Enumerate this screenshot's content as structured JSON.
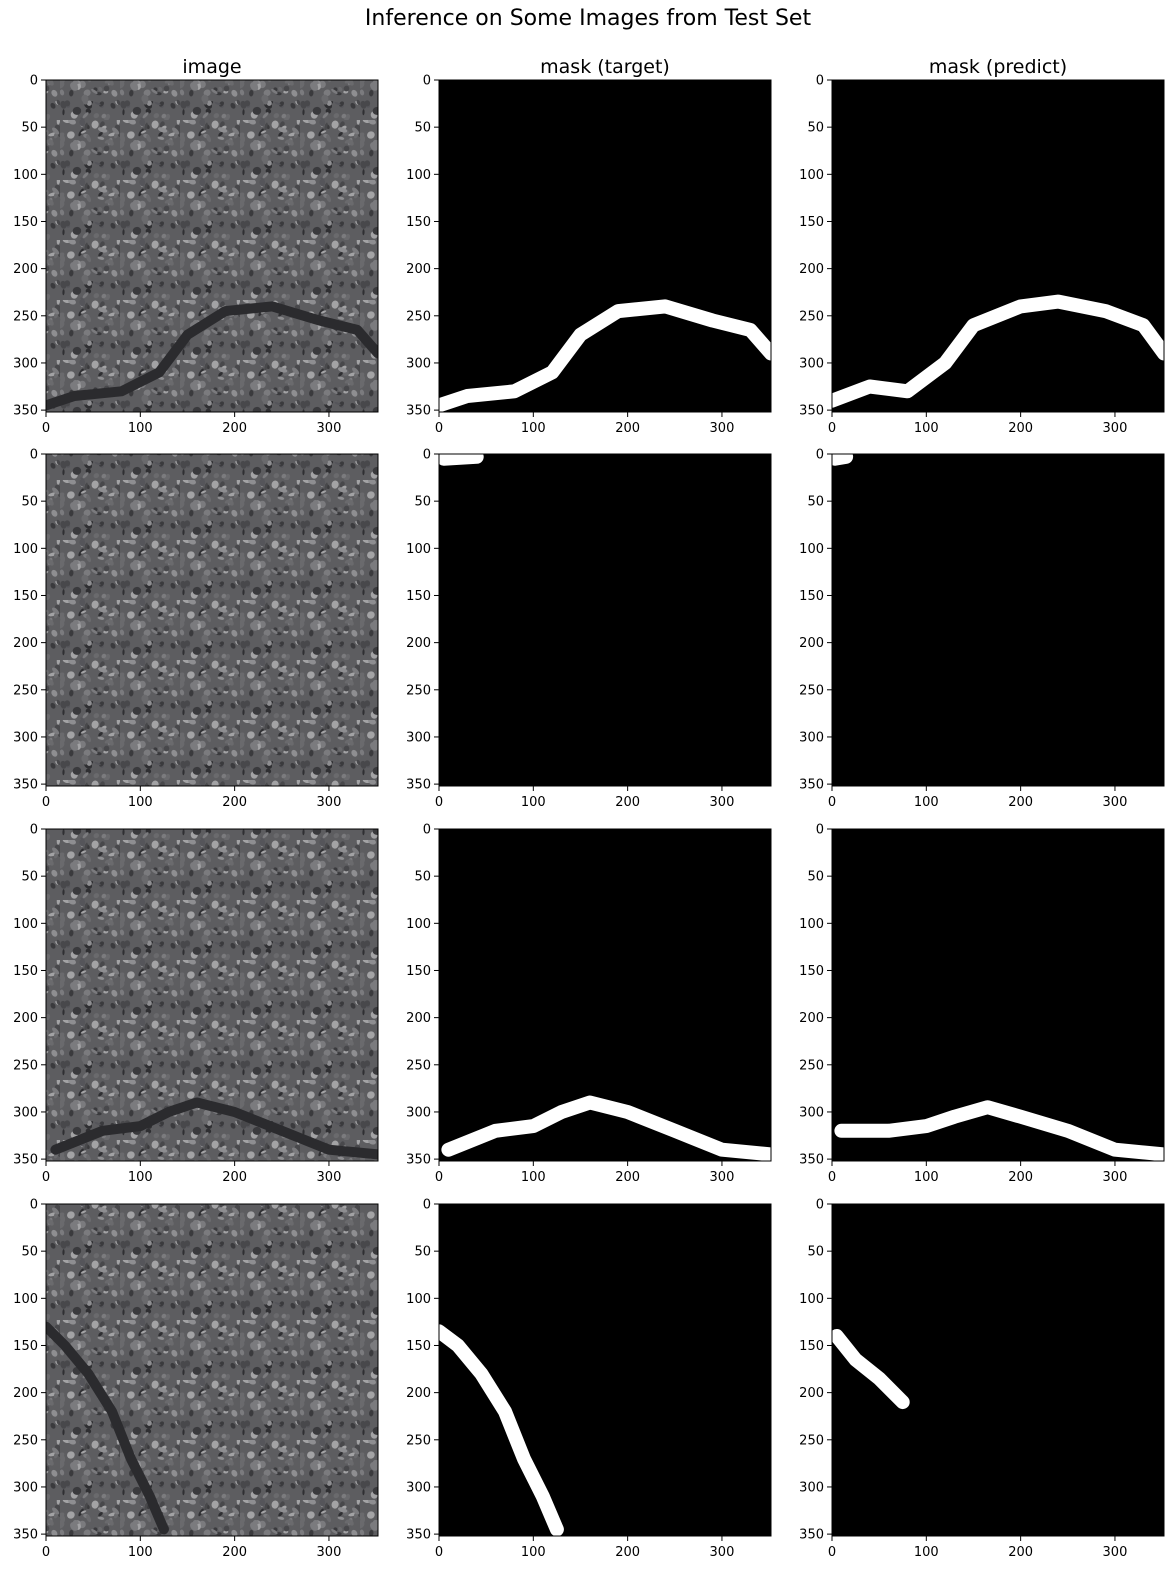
{
  "chart_data": {
    "type": "image_grid",
    "title": "Inference on Some Images from Test Set",
    "columns": [
      "image",
      "mask (target)",
      "mask (predict)"
    ],
    "rows": 4,
    "image_size": [
      352,
      352
    ],
    "axes": {
      "xlim": [
        0,
        352
      ],
      "ylim": [
        352,
        0
      ],
      "x_ticks": [
        0,
        100,
        200,
        300
      ],
      "y_ticks": [
        0,
        50,
        100,
        150,
        200,
        250,
        300,
        350
      ],
      "y_inverted": true
    },
    "panels": [
      {
        "row": 0,
        "col": 0,
        "content": "asphalt-photo",
        "crack": [
          [
            0,
            345
          ],
          [
            30,
            335
          ],
          [
            80,
            330
          ],
          [
            120,
            310
          ],
          [
            150,
            270
          ],
          [
            190,
            245
          ],
          [
            240,
            240
          ],
          [
            290,
            255
          ],
          [
            330,
            265
          ],
          [
            352,
            290
          ]
        ]
      },
      {
        "row": 0,
        "col": 1,
        "content": "mask-target",
        "crack": [
          [
            0,
            345
          ],
          [
            30,
            335
          ],
          [
            80,
            330
          ],
          [
            120,
            310
          ],
          [
            150,
            270
          ],
          [
            190,
            245
          ],
          [
            240,
            240
          ],
          [
            290,
            255
          ],
          [
            330,
            265
          ],
          [
            352,
            290
          ]
        ]
      },
      {
        "row": 0,
        "col": 2,
        "content": "mask-predict",
        "crack": [
          [
            0,
            340
          ],
          [
            40,
            325
          ],
          [
            80,
            330
          ],
          [
            120,
            300
          ],
          [
            150,
            260
          ],
          [
            200,
            240
          ],
          [
            240,
            235
          ],
          [
            290,
            245
          ],
          [
            330,
            260
          ],
          [
            352,
            290
          ]
        ]
      },
      {
        "row": 1,
        "col": 0,
        "content": "asphalt-photo",
        "crack": []
      },
      {
        "row": 1,
        "col": 1,
        "content": "mask-target",
        "crack": [
          [
            5,
            5
          ],
          [
            40,
            3
          ]
        ]
      },
      {
        "row": 1,
        "col": 2,
        "content": "mask-predict",
        "crack": [
          [
            3,
            5
          ],
          [
            15,
            3
          ]
        ]
      },
      {
        "row": 2,
        "col": 0,
        "content": "asphalt-photo",
        "crack": [
          [
            10,
            340
          ],
          [
            60,
            320
          ],
          [
            100,
            315
          ],
          [
            130,
            300
          ],
          [
            160,
            290
          ],
          [
            200,
            300
          ],
          [
            250,
            320
          ],
          [
            300,
            340
          ],
          [
            352,
            345
          ]
        ]
      },
      {
        "row": 2,
        "col": 1,
        "content": "mask-target",
        "crack": [
          [
            10,
            340
          ],
          [
            60,
            320
          ],
          [
            100,
            315
          ],
          [
            130,
            300
          ],
          [
            160,
            290
          ],
          [
            200,
            300
          ],
          [
            250,
            320
          ],
          [
            300,
            340
          ],
          [
            352,
            345
          ]
        ]
      },
      {
        "row": 2,
        "col": 2,
        "content": "mask-predict",
        "crack": [
          [
            10,
            320
          ],
          [
            60,
            320
          ],
          [
            100,
            315
          ],
          [
            130,
            305
          ],
          [
            165,
            295
          ],
          [
            200,
            305
          ],
          [
            250,
            320
          ],
          [
            300,
            340
          ],
          [
            352,
            345
          ]
        ]
      },
      {
        "row": 3,
        "col": 0,
        "content": "asphalt-photo",
        "crack": [
          [
            0,
            130
          ],
          [
            20,
            150
          ],
          [
            45,
            180
          ],
          [
            70,
            220
          ],
          [
            90,
            270
          ],
          [
            110,
            310
          ],
          [
            125,
            345
          ]
        ]
      },
      {
        "row": 3,
        "col": 1,
        "content": "mask-target",
        "crack": [
          [
            0,
            135
          ],
          [
            20,
            150
          ],
          [
            45,
            180
          ],
          [
            70,
            220
          ],
          [
            90,
            270
          ],
          [
            110,
            310
          ],
          [
            125,
            345
          ]
        ]
      },
      {
        "row": 3,
        "col": 2,
        "content": "mask-predict",
        "crack": [
          [
            5,
            140
          ],
          [
            25,
            165
          ],
          [
            50,
            185
          ],
          [
            75,
            210
          ]
        ]
      }
    ],
    "colors": {
      "mask_background": "#000000",
      "mask_foreground": "#ffffff",
      "asphalt_base": "#5d5d60",
      "asphalt_dark": "#2b2b2e",
      "asphalt_light": "#9a9a9c"
    }
  }
}
